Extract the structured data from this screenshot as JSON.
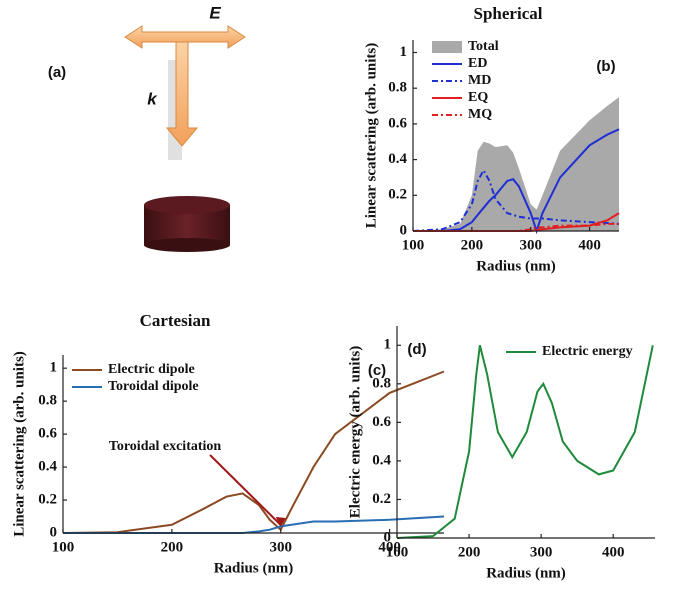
{
  "diagram": {
    "label": "(a)",
    "field_label": "E",
    "wave_label": "k"
  },
  "chart_data": [
    {
      "type": "line",
      "title": "Spherical",
      "panel": "(b)",
      "xlabel": "Radius (nm)",
      "ylabel": "Linear scattering (arb. units)",
      "x": [
        100,
        150,
        180,
        200,
        210,
        220,
        230,
        240,
        260,
        270,
        280,
        300,
        310,
        320,
        350,
        400,
        430,
        450
      ],
      "series": [
        {
          "name": "Total",
          "color": "#a9a9a9",
          "style": "area",
          "values": [
            0,
            0.01,
            0.04,
            0.2,
            0.45,
            0.5,
            0.49,
            0.47,
            0.48,
            0.44,
            0.35,
            0.15,
            0.12,
            0.2,
            0.45,
            0.62,
            0.7,
            0.75
          ]
        },
        {
          "name": "ED",
          "color": "#1f2fd6",
          "style": "solid",
          "values": [
            0,
            0,
            0.01,
            0.05,
            0.09,
            0.13,
            0.17,
            0.2,
            0.28,
            0.29,
            0.25,
            0.1,
            0,
            0.1,
            0.3,
            0.48,
            0.54,
            0.57
          ]
        },
        {
          "name": "MD",
          "color": "#1f2fd6",
          "style": "dashed",
          "values": [
            0,
            0.01,
            0.05,
            0.15,
            0.28,
            0.34,
            0.28,
            0.18,
            0.1,
            0.09,
            0.08,
            0.07,
            0.07,
            0.07,
            0.06,
            0.05,
            0.045,
            0.04
          ]
        },
        {
          "name": "EQ",
          "color": "#e02020",
          "style": "solid",
          "values": [
            0,
            0,
            0,
            0,
            0,
            0,
            0,
            0,
            0,
            0,
            0,
            0,
            0.005,
            0.01,
            0.02,
            0.03,
            0.06,
            0.1
          ]
        },
        {
          "name": "MQ",
          "color": "#e02020",
          "style": "dashed",
          "values": [
            0,
            0,
            0,
            0,
            0,
            0,
            0,
            0,
            0,
            0,
            0,
            0.01,
            0.02,
            0.02,
            0.03,
            0.03,
            0.04,
            0.04
          ]
        }
      ],
      "xlim": [
        100,
        450
      ],
      "xticks": [
        100,
        200,
        300,
        400
      ],
      "ylim": [
        0,
        1.07
      ],
      "yticks": [
        0,
        0.2,
        0.4,
        0.6,
        0.8,
        1
      ],
      "legend": "upper left"
    },
    {
      "type": "line",
      "title": "Cartesian",
      "panel": "(c)",
      "xlabel": "Radius (nm)",
      "ylabel": "Linear scattering (arb. units)",
      "annotation": "Toroidal excitation",
      "x": [
        100,
        150,
        200,
        230,
        250,
        265,
        280,
        290,
        300,
        310,
        330,
        350,
        400,
        450
      ],
      "series": [
        {
          "name": "Electric dipole",
          "color": "#8b4a22",
          "style": "solid",
          "values": [
            0,
            0.005,
            0.05,
            0.15,
            0.22,
            0.24,
            0.17,
            0.08,
            0.02,
            0.15,
            0.4,
            0.6,
            0.85,
            0.98
          ]
        },
        {
          "name": "Toroidal dipole",
          "color": "#2a6db5",
          "style": "solid",
          "values": [
            0,
            0,
            0,
            0,
            0,
            0,
            0.01,
            0.02,
            0.04,
            0.05,
            0.07,
            0.07,
            0.08,
            0.1
          ]
        }
      ],
      "xlim": [
        100,
        450
      ],
      "xticks": [
        100,
        200,
        300,
        400
      ],
      "ylim": [
        0,
        1.08
      ],
      "yticks": [
        0,
        0.2,
        0.4,
        0.6,
        0.8,
        1
      ],
      "legend": "upper left"
    },
    {
      "type": "line",
      "panel": "(d)",
      "xlabel": "Radius (nm)",
      "ylabel": "Electric energy (arb. units)",
      "x": [
        100,
        150,
        180,
        200,
        210,
        215,
        225,
        240,
        260,
        280,
        295,
        303,
        315,
        330,
        350,
        380,
        400,
        430,
        455
      ],
      "series": [
        {
          "name": "Electric energy",
          "color": "#1e8a3a",
          "style": "solid",
          "values": [
            0,
            0.01,
            0.1,
            0.45,
            0.85,
            1,
            0.85,
            0.55,
            0.42,
            0.55,
            0.76,
            0.8,
            0.7,
            0.5,
            0.4,
            0.33,
            0.35,
            0.55,
            1
          ]
        }
      ],
      "xlim": [
        100,
        458
      ],
      "xticks": [
        100,
        200,
        300,
        400
      ],
      "ylim": [
        0,
        1.1
      ],
      "yticks": [
        0,
        0.2,
        0.4,
        0.6,
        0.8,
        1
      ],
      "legend": "upper center"
    }
  ]
}
